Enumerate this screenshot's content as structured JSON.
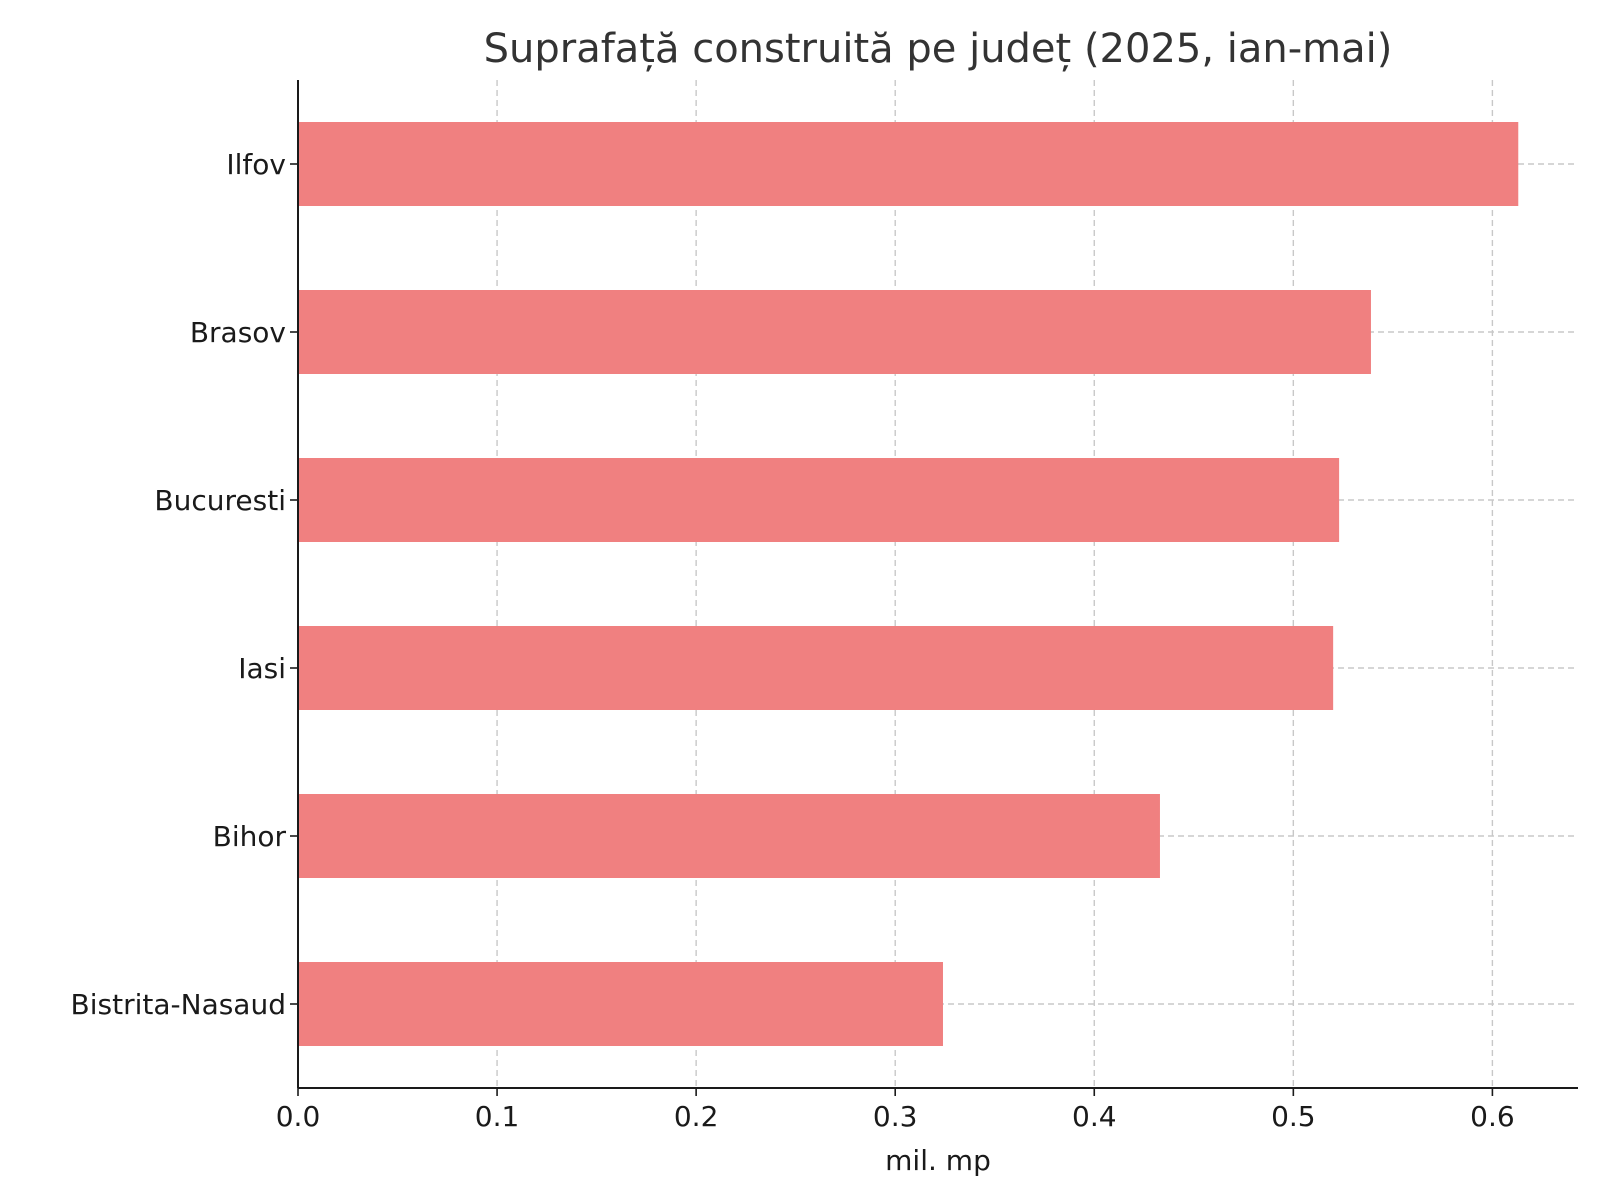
{
  "chart_data": {
    "type": "bar",
    "orientation": "horizontal",
    "title": "Suprafață construită pe județ (2025, ian-mai)",
    "xlabel": "mil. mp",
    "ylabel": "",
    "categories": [
      "Ilfov",
      "Brasov",
      "Bucuresti",
      "Iasi",
      "Bihor",
      "Bistrita-Nasaud"
    ],
    "values": [
      0.613,
      0.539,
      0.523,
      0.52,
      0.433,
      0.324
    ],
    "xlim": [
      0,
      0.643
    ],
    "xticks": [
      0.0,
      0.1,
      0.2,
      0.3,
      0.4,
      0.5,
      0.6
    ],
    "xtick_labels": [
      "0.0",
      "0.1",
      "0.2",
      "0.3",
      "0.4",
      "0.5",
      "0.6"
    ],
    "grid": true,
    "bar_color": "#f08080",
    "legend": false
  }
}
